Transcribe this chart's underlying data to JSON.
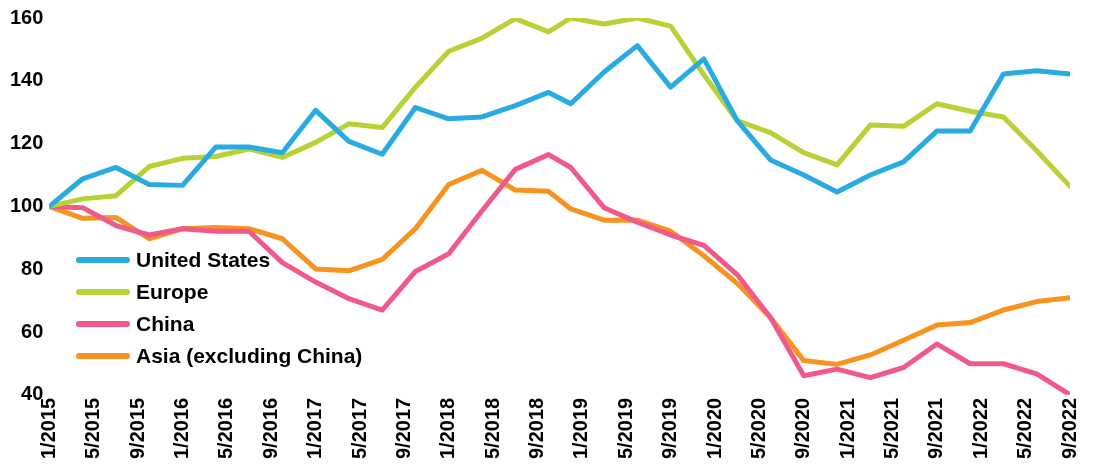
{
  "chart_data": {
    "type": "line",
    "x": [
      "2015-01",
      "2015-04",
      "2015-07",
      "2015-10",
      "2016-01",
      "2016-04",
      "2016-07",
      "2016-10",
      "2017-01",
      "2017-04",
      "2017-07",
      "2017-10",
      "2018-01",
      "2018-04",
      "2018-07",
      "2018-10",
      "2018-12",
      "2019-03",
      "2019-06",
      "2019-09",
      "2019-12",
      "2020-03",
      "2020-06",
      "2020-09",
      "2020-12",
      "2021-03",
      "2021-06",
      "2021-09",
      "2021-12",
      "2022-03",
      "2022-06",
      "2022-09"
    ],
    "series": [
      {
        "name": "United States",
        "color": "#29abe2",
        "values": [
          100,
          108.8,
          112.4,
          107,
          106.7,
          118.9,
          118.9,
          117.1,
          130.6,
          120.7,
          116.6,
          131.5,
          127.9,
          128.5,
          132.1,
          136.3,
          132.7,
          142.8,
          151.2,
          138,
          147,
          127.3,
          114.8,
          110,
          104.6,
          110,
          114.2,
          124,
          124,
          142.2,
          143.2,
          142.2
        ]
      },
      {
        "name": "Europe",
        "color": "#b5d334",
        "values": [
          100,
          102.4,
          103.4,
          112.7,
          115.3,
          115.9,
          118.3,
          115.6,
          120.4,
          126.3,
          125.1,
          138,
          149.4,
          153.6,
          159.8,
          155.6,
          160,
          158.1,
          160,
          157.4,
          141.9,
          127.3,
          123.5,
          117.1,
          113.2,
          125.9,
          125.5,
          132.7,
          130.3,
          128.5,
          117.7,
          106.4
        ]
      },
      {
        "name": "China",
        "color": "#ef5a8a",
        "values": [
          100,
          99.6,
          93.9,
          90.9,
          92.9,
          92.1,
          92.1,
          82.1,
          75.9,
          70.6,
          67,
          79.3,
          84.9,
          98.6,
          111.8,
          116.5,
          112.4,
          99.6,
          95,
          90.9,
          87.6,
          78.3,
          64.6,
          46.1,
          48.2,
          45.5,
          48.7,
          56.2,
          49.9,
          49.9,
          46.7,
          40
        ]
      },
      {
        "name": "Asia (excluding China)",
        "color": "#f7931e",
        "values": [
          100,
          96.2,
          96.5,
          89.7,
          92.9,
          93.3,
          92.9,
          89.7,
          80.1,
          79.5,
          83.1,
          92.9,
          107,
          111.5,
          105.2,
          104.8,
          99.2,
          95.6,
          95.6,
          92.1,
          84.3,
          75.5,
          64.6,
          50.9,
          49.7,
          52.7,
          57.4,
          62.2,
          63,
          67,
          69.7,
          70.9
        ]
      }
    ],
    "xlim": [
      "2015-01",
      "2022-09"
    ],
    "xticks": [
      {
        "value": "2015-01",
        "label": "1/2015"
      },
      {
        "value": "2015-05",
        "label": "5/2015"
      },
      {
        "value": "2015-09",
        "label": "9/2015"
      },
      {
        "value": "2016-01",
        "label": "1/2016"
      },
      {
        "value": "2016-05",
        "label": "5/2016"
      },
      {
        "value": "2016-09",
        "label": "9/2016"
      },
      {
        "value": "2017-01",
        "label": "1/2017"
      },
      {
        "value": "2017-05",
        "label": "5/2017"
      },
      {
        "value": "2017-09",
        "label": "9/2017"
      },
      {
        "value": "2018-01",
        "label": "1/2018"
      },
      {
        "value": "2018-05",
        "label": "5/2018"
      },
      {
        "value": "2018-09",
        "label": "9/2018"
      },
      {
        "value": "2019-01",
        "label": "1/2019"
      },
      {
        "value": "2019-05",
        "label": "5/2019"
      },
      {
        "value": "2019-09",
        "label": "9/2019"
      },
      {
        "value": "2020-01",
        "label": "1/2020"
      },
      {
        "value": "2020-05",
        "label": "5/2020"
      },
      {
        "value": "2020-09",
        "label": "9/2020"
      },
      {
        "value": "2021-01",
        "label": "1/2021"
      },
      {
        "value": "2021-05",
        "label": "5/2021"
      },
      {
        "value": "2021-09",
        "label": "9/2021"
      },
      {
        "value": "2022-01",
        "label": "1/2022"
      },
      {
        "value": "2022-05",
        "label": "5/2022"
      },
      {
        "value": "2022-09",
        "label": "9/2022"
      }
    ],
    "ylim": [
      40,
      160
    ],
    "yticks": [
      40,
      60,
      80,
      100,
      120,
      140,
      160
    ],
    "grid": false,
    "legend": "bottom left",
    "marker": "none",
    "line_style": "solid"
  }
}
